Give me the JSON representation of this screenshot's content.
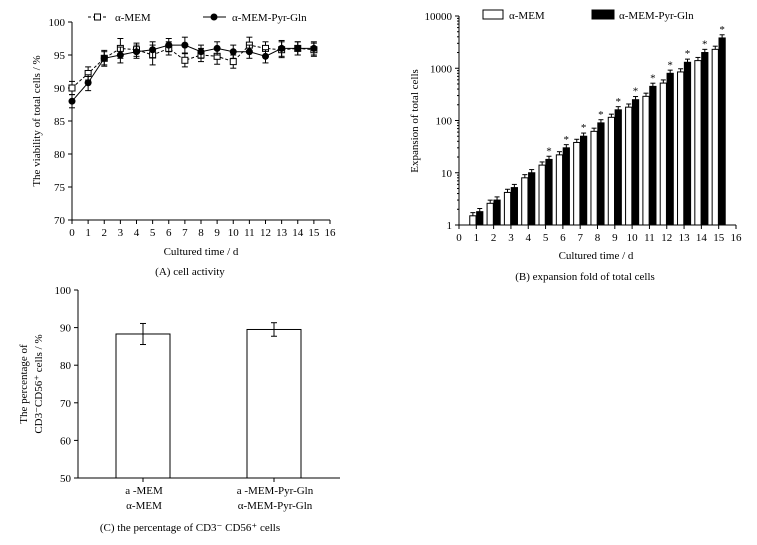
{
  "chart_data": [
    {
      "type": "line",
      "caption": "(A) cell activity",
      "xlabel": "Cultured time / d",
      "ylabel": "The viability of total cells / %",
      "xlim": [
        0,
        16
      ],
      "ylim": [
        70,
        100
      ],
      "xticks": [
        0,
        1,
        2,
        3,
        4,
        5,
        6,
        7,
        8,
        9,
        10,
        11,
        12,
        13,
        14,
        15,
        16
      ],
      "yticks": [
        70,
        75,
        80,
        85,
        90,
        95,
        100
      ],
      "legend": "top",
      "series": [
        {
          "name": "α-MEM",
          "marker": "open-square",
          "line": "dashed",
          "x": [
            0,
            1,
            2,
            3,
            4,
            5,
            6,
            7,
            8,
            9,
            10,
            11,
            12,
            13,
            14,
            15
          ],
          "y": [
            90,
            92.2,
            94.5,
            96,
            95.8,
            95,
            96,
            94.2,
            95,
            94.8,
            94,
            96.5,
            96,
            95.8,
            96,
            95.8
          ],
          "err": [
            1,
            1,
            1.2,
            1.5,
            1,
            1.5,
            1,
            1,
            1,
            1.2,
            1,
            1.2,
            1,
            1.2,
            1,
            1
          ]
        },
        {
          "name": "α-MEM-Pyr-Gln",
          "marker": "filled-circle",
          "line": "solid",
          "x": [
            0,
            1,
            2,
            3,
            4,
            5,
            6,
            7,
            8,
            9,
            10,
            11,
            12,
            13,
            14,
            15
          ],
          "y": [
            88,
            90.8,
            94.5,
            95,
            95.5,
            95.8,
            96.5,
            96.5,
            95.5,
            96,
            95.5,
            95.5,
            94.8,
            96,
            96,
            96
          ],
          "err": [
            1,
            1.2,
            1,
            1.2,
            1,
            1.2,
            1,
            1.2,
            1,
            1,
            1,
            1,
            1,
            1.2,
            1,
            1
          ]
        }
      ]
    },
    {
      "type": "bar",
      "caption": "(B) expansion fold of total cells",
      "xlabel": "Cultured time / d",
      "ylabel": "Expansion of total cells",
      "yscale": "log",
      "xlim": [
        0,
        16
      ],
      "ylim": [
        1,
        10000
      ],
      "xticks": [
        0,
        1,
        2,
        3,
        4,
        5,
        6,
        7,
        8,
        9,
        10,
        11,
        12,
        13,
        14,
        15,
        16
      ],
      "yticks": [
        1,
        10,
        100,
        1000,
        10000
      ],
      "ytick_labels": [
        "1",
        "10",
        "100",
        "1000",
        "10000"
      ],
      "legend": "top",
      "x": [
        1,
        2,
        3,
        4,
        5,
        6,
        7,
        8,
        9,
        10,
        11,
        12,
        13,
        14,
        15
      ],
      "series": [
        {
          "name": "α-MEM",
          "fill": "#ffffff",
          "values": [
            1.5,
            2.6,
            4.2,
            8,
            14,
            22,
            38,
            62,
            115,
            180,
            290,
            520,
            850,
            1400,
            2300
          ]
        },
        {
          "name": "α-MEM-Pyr-Gln",
          "fill": "#000000",
          "values": [
            1.8,
            3,
            5.2,
            10,
            18,
            30,
            50,
            90,
            160,
            250,
            450,
            800,
            1300,
            2000,
            3800
          ]
        }
      ],
      "significance_marker": "*",
      "significance_days": [
        5,
        6,
        7,
        8,
        9,
        10,
        11,
        12,
        13,
        14,
        15
      ]
    },
    {
      "type": "bar",
      "caption": "(C) the percentage of CD3⁻ CD56⁺ cells",
      "ylabel_line1": "The percentage of",
      "ylabel_line2": "CD3⁻CD56⁺ cells / %",
      "ylim": [
        50,
        100
      ],
      "yticks": [
        50,
        60,
        70,
        80,
        90,
        100
      ],
      "ytick_labels": [
        "50",
        "60",
        "70",
        "80",
        "90",
        "100"
      ],
      "categories_line1": [
        "a  -MEM",
        "a  -MEM-Pyr-Gln"
      ],
      "categories": [
        "α-MEM",
        "α-MEM-Pyr-Gln"
      ],
      "values": [
        88.3,
        89.5
      ],
      "err": [
        2.8,
        1.8
      ]
    }
  ],
  "colors": {
    "ink": "#000000",
    "paper": "#ffffff"
  }
}
